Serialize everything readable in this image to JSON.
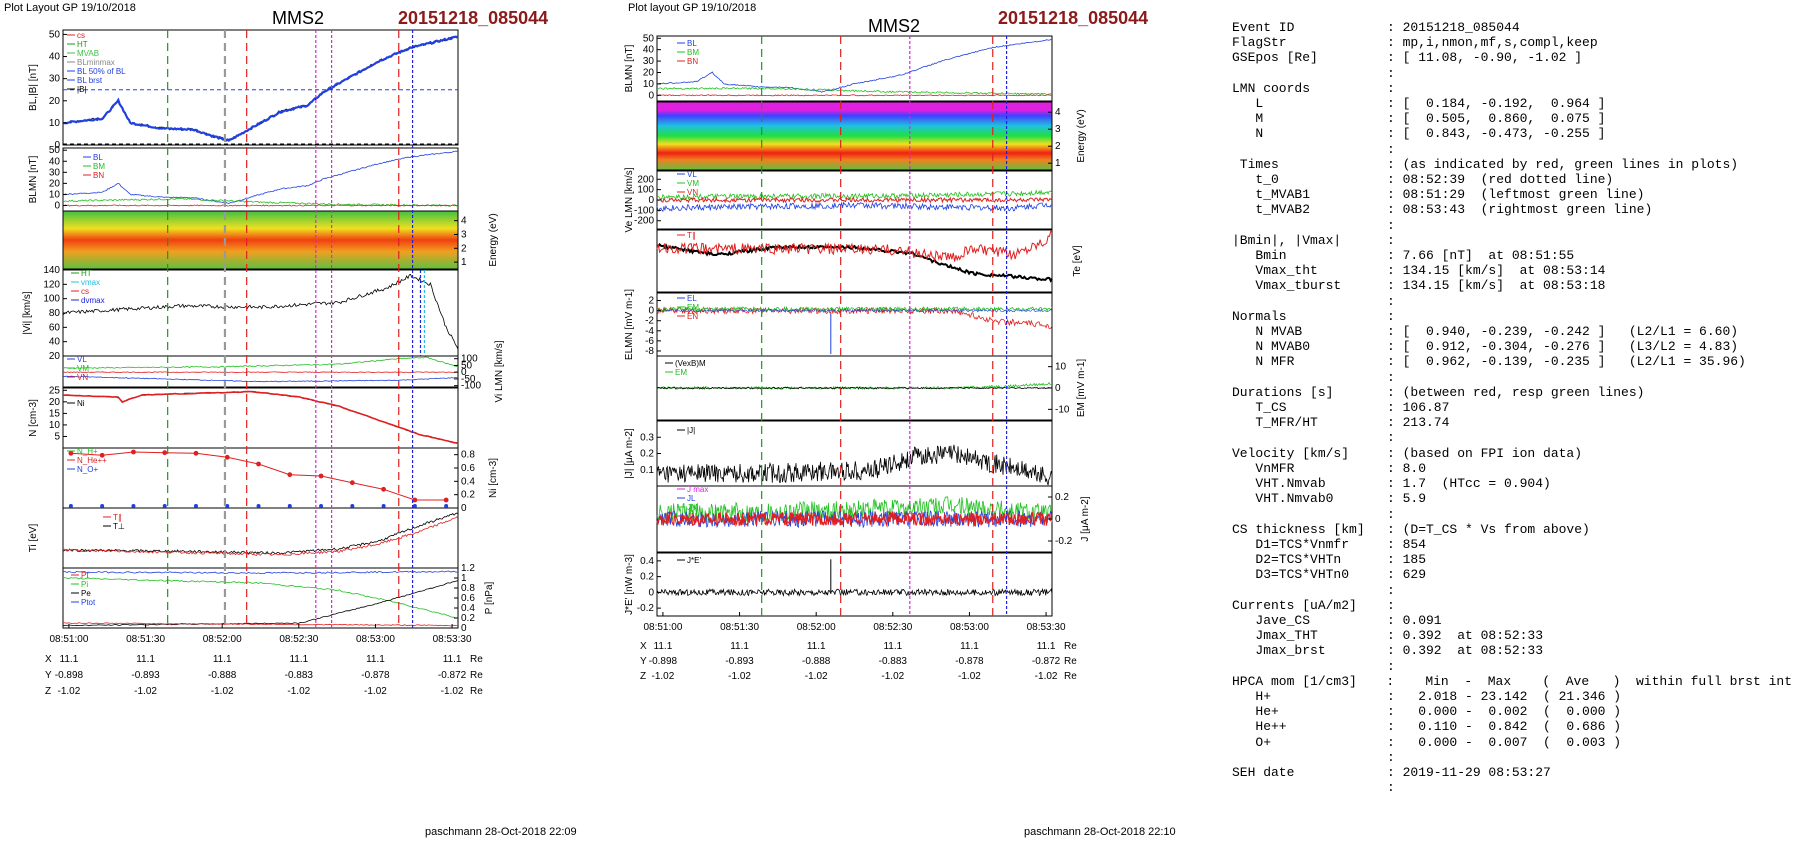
{
  "left": {
    "header": "Plot Layout GP 19/10/2018",
    "probe": "MMS2",
    "event": "20151218_085044",
    "footer": "paschmann 28-Oct-2018 22:09",
    "time_ticks": [
      "08:51:00",
      "08:51:30",
      "08:52:00",
      "08:52:30",
      "08:53:00",
      "08:53:30"
    ],
    "coords": {
      "X": {
        "label": "X",
        "unit": "Re",
        "values": [
          "11.1",
          "11.1",
          "11.1",
          "11.1",
          "11.1",
          "11.1"
        ]
      },
      "Y": {
        "label": "Y",
        "unit": "Re",
        "values": [
          "-0.898",
          "-0.893",
          "-0.888",
          "-0.883",
          "-0.878",
          "-0.872"
        ]
      },
      "Z": {
        "label": "Z",
        "unit": "Re",
        "values": [
          "-1.02",
          "-1.02",
          "-1.02",
          "-1.02",
          "-1.02",
          "-1.02"
        ]
      }
    },
    "legend_b": [
      "cs",
      "HT",
      "MVAB",
      "BLminmax",
      "BL 50% of BL",
      "BL brst",
      "|B|"
    ],
    "legend_blmn": [
      "BL",
      "BM",
      "BN"
    ],
    "legend_v": [
      "HT",
      "vmax",
      "cs",
      "dvmax"
    ],
    "legend_vlmn": [
      "VL",
      "VM",
      "VN"
    ],
    "legend_n": [
      "Ni"
    ],
    "legend_hpca": [
      "N_H+",
      "N_He++",
      "N_O+"
    ],
    "legend_t": [
      "T∥",
      "T⊥"
    ],
    "legend_p": [
      "Pt",
      "Pi",
      "Pe",
      "Ptot"
    ],
    "ylabels": [
      "BL,|B| [nT]",
      "BLMN [nT]",
      "Energy (eV)",
      "|Vi| [km/s]",
      "Vi LMN [km/s]",
      "N [cm-3]",
      "Ni [cm-3]",
      "Ti [eV]",
      "P [nPa]"
    ]
  },
  "middle": {
    "header": "Plot layout GP 19/10/2018",
    "probe": "MMS2",
    "event": "20151218_085044",
    "footer": "paschmann 28-Oct-2018 22:10",
    "time_ticks": [
      "08:51:00",
      "08:51:30",
      "08:52:00",
      "08:52:30",
      "08:53:00",
      "08:53:30"
    ],
    "coords": {
      "X": {
        "label": "X",
        "unit": "Re",
        "values": [
          "11.1",
          "11.1",
          "11.1",
          "11.1",
          "11.1",
          "11.1"
        ]
      },
      "Y": {
        "label": "Y",
        "unit": "Re",
        "values": [
          "-0.898",
          "-0.893",
          "-0.888",
          "-0.883",
          "-0.878",
          "-0.872"
        ]
      },
      "Z": {
        "label": "Z",
        "unit": "Re",
        "values": [
          "-1.02",
          "-1.02",
          "-1.02",
          "-1.02",
          "-1.02",
          "-1.02"
        ]
      }
    },
    "legend_blmn": [
      "BL",
      "BM",
      "BN"
    ],
    "legend_ve": [
      "VL",
      "VM",
      "VN"
    ],
    "legend_te": [
      "T∥"
    ],
    "legend_e": [
      "EL",
      "EM",
      "EN"
    ],
    "legend_vexb": [
      "(VexB)M",
      "EM"
    ],
    "legend_j": [
      "|J|"
    ],
    "legend_jlmn": [
      "J max",
      "JL",
      "JM",
      "JN"
    ],
    "legend_je": [
      "J*E'"
    ],
    "ylabels": [
      "BLMN [nT]",
      "Energy (eV)",
      "Ve LMN [km/s]",
      "Te [eV]",
      "ELMN [mV m-1]",
      "EM [mV m-1]",
      "|J| [μA m-2]",
      "J [μA m-2]",
      "J*E' [nW m-3]"
    ]
  },
  "info": [
    {
      "k": "Event ID",
      "v": ": 20151218_085044"
    },
    {
      "k": "FlagStr",
      "v": ": mp,i,nmon,mf,s,compl,keep"
    },
    {
      "k": "GSEpos [Re]",
      "v": ": [ 11.08, -0.90, -1.02 ]"
    },
    {
      "k": "",
      "v": ":"
    },
    {
      "k": "LMN coords",
      "v": ":"
    },
    {
      "k": "   L",
      "v": ": [  0.184, -0.192,  0.964 ]"
    },
    {
      "k": "   M",
      "v": ": [  0.505,  0.860,  0.075 ]"
    },
    {
      "k": "   N",
      "v": ": [  0.843, -0.473, -0.255 ]"
    },
    {
      "k": "",
      "v": ":"
    },
    {
      "k": " Times",
      "v": ": (as indicated by red, green lines in plots)"
    },
    {
      "k": "   t_0",
      "v": ": 08:52:39  (red dotted line)"
    },
    {
      "k": "   t_MVAB1",
      "v": ": 08:51:29  (leftmost green line)"
    },
    {
      "k": "   t_MVAB2",
      "v": ": 08:53:43  (rightmost green line)"
    },
    {
      "k": "",
      "v": ":"
    },
    {
      "k": "|Bmin|, |Vmax|",
      "v": ":"
    },
    {
      "k": "   Bmin",
      "v": ": 7.66 [nT]  at 08:51:55"
    },
    {
      "k": "   Vmax_tht",
      "v": ": 134.15 [km/s]  at 08:53:14"
    },
    {
      "k": "   Vmax_tburst",
      "v": ": 134.15 [km/s]  at 08:53:18"
    },
    {
      "k": "",
      "v": ":"
    },
    {
      "k": "Normals",
      "v": ":"
    },
    {
      "k": "   N MVAB",
      "v": ": [  0.940, -0.239, -0.242 ]   (L2/L1 = 6.60)"
    },
    {
      "k": "   N MVAB0",
      "v": ": [  0.912, -0.304, -0.276 ]   (L3/L2 = 4.83)"
    },
    {
      "k": "   N MFR",
      "v": ": [  0.962, -0.139, -0.235 ]   (L2/L1 = 35.96)"
    },
    {
      "k": "",
      "v": ":"
    },
    {
      "k": "Durations [s]",
      "v": ": (between red, resp green lines)"
    },
    {
      "k": "   T_CS",
      "v": ": 106.87"
    },
    {
      "k": "   T_MFR/HT",
      "v": ": 213.74"
    },
    {
      "k": "",
      "v": ":"
    },
    {
      "k": "Velocity [km/s]",
      "v": ": (based on FPI ion data)"
    },
    {
      "k": "   VnMFR",
      "v": ": 8.0"
    },
    {
      "k": "   VHT.Nmvab",
      "v": ": 1.7  (HTcc = 0.904)"
    },
    {
      "k": "   VHT.Nmvab0",
      "v": ": 5.9"
    },
    {
      "k": "",
      "v": ":"
    },
    {
      "k": "CS thickness [km]",
      "v": ": (D=T_CS * Vs from above)"
    },
    {
      "k": "   D1=TCS*Vnmfr",
      "v": ": 854"
    },
    {
      "k": "   D2=TCS*VHTn",
      "v": ": 185"
    },
    {
      "k": "   D3=TCS*VHTn0",
      "v": ": 629"
    },
    {
      "k": "",
      "v": ":"
    },
    {
      "k": "Currents [uA/m2]",
      "v": ":"
    },
    {
      "k": "   Jave_CS",
      "v": ": 0.091"
    },
    {
      "k": "   Jmax_THT",
      "v": ": 0.392  at 08:52:33"
    },
    {
      "k": "   Jmax_brst",
      "v": ": 0.392  at 08:52:33"
    },
    {
      "k": "",
      "v": ":"
    },
    {
      "k": "HPCA mom [1/cm3]",
      "v": ":    Min  -  Max    (  Ave   )  within full brst int"
    },
    {
      "k": "   H+",
      "v": ":   2.018 - 23.142  ( 21.346 )"
    },
    {
      "k": "   He+",
      "v": ":   0.000 -  0.002  (  0.000 )"
    },
    {
      "k": "   He++",
      "v": ":   0.110 -  0.842  (  0.686 )"
    },
    {
      "k": "   O+",
      "v": ":   0.000 -  0.007  (  0.003 )"
    },
    {
      "k": "",
      "v": ":"
    },
    {
      "k": "SEH date",
      "v": ": 2019-11-29 08:53:27"
    },
    {
      "k": "",
      "v": ":"
    }
  ],
  "chart_data": [
    {
      "type": "line",
      "title": "MMS2",
      "panel": "left-B",
      "x": [
        "08:51:00",
        "08:51:15",
        "08:51:30",
        "08:51:45",
        "08:52:00",
        "08:52:15",
        "08:52:30",
        "08:52:45",
        "08:53:00",
        "08:53:15",
        "08:53:30"
      ],
      "series": [
        {
          "name": "|B|",
          "values": [
            10,
            18,
            8,
            7,
            5,
            8,
            18,
            30,
            40,
            46,
            49
          ]
        }
      ],
      "ylabel": "BL,|B| [nT]",
      "ylim": [
        0,
        50
      ]
    },
    {
      "type": "line",
      "panel": "left-Ni",
      "x": [
        "08:51:00",
        "08:51:30",
        "08:52:00",
        "08:52:30",
        "08:53:00",
        "08:53:30"
      ],
      "series": [
        {
          "name": "Ni",
          "values": [
            24,
            25,
            25,
            22,
            10,
            3
          ]
        }
      ],
      "ylabel": "N [cm-3]",
      "ylim": [
        0,
        25
      ]
    },
    {
      "type": "line",
      "panel": "middle-J",
      "x": [
        "08:51:00",
        "08:51:30",
        "08:52:00",
        "08:52:30",
        "08:53:00",
        "08:53:30"
      ],
      "series": [
        {
          "name": "|J|",
          "values": [
            0.08,
            0.07,
            0.09,
            0.15,
            0.18,
            0.05
          ]
        }
      ],
      "ylabel": "|J| [μA m-2]",
      "ylim": [
        0,
        0.4
      ]
    }
  ]
}
